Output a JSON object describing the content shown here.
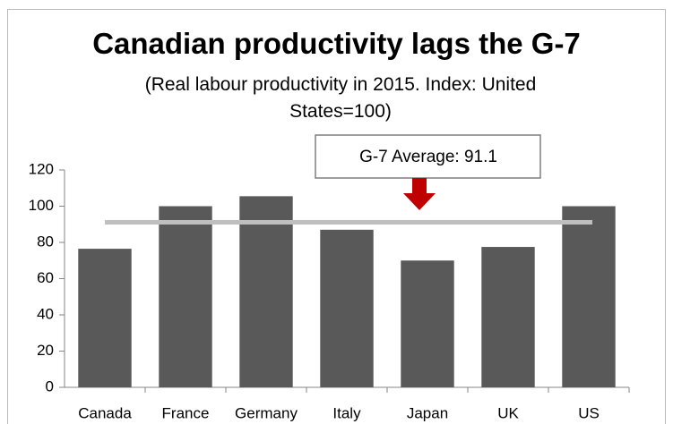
{
  "chart_data": {
    "type": "bar",
    "title": "Canadian productivity lags the G-7",
    "subtitle": "(Real labour productivity in 2015. Index: United States=100)",
    "categories": [
      "Canada",
      "France",
      "Germany",
      "Italy",
      "Japan",
      "UK",
      "US"
    ],
    "values": [
      76.5,
      100,
      105.5,
      87,
      70,
      77.5,
      100
    ],
    "color": "#595959",
    "average": 91.1,
    "average_color": "#bfbfbf",
    "annotation": "G-7 Average: 91.1",
    "arrow_color": "#c00000",
    "ylim": [
      0,
      120
    ],
    "yticks": [
      0,
      20,
      40,
      60,
      80,
      100,
      120
    ],
    "grid": false
  }
}
